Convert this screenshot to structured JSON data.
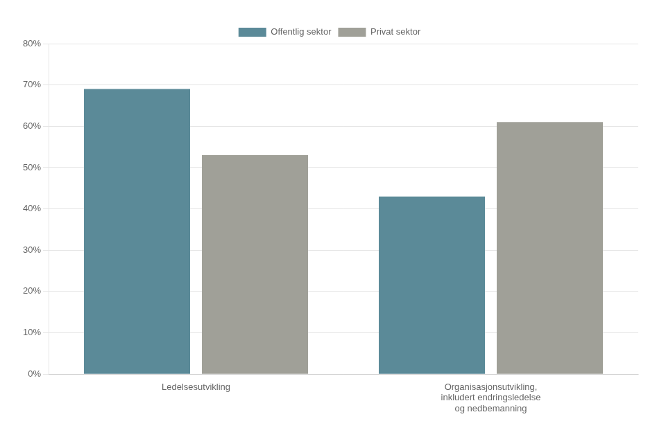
{
  "chart_data": {
    "type": "bar",
    "categories": [
      "Ledelsesutvikling",
      "Organisasjonsutvikling,\ninkludert endringsledelse\nog nedbemanning"
    ],
    "series": [
      {
        "name": "Offentlig sektor",
        "values": [
          0.69,
          0.43
        ],
        "color": "#5B8A98"
      },
      {
        "name": "Privat sektor",
        "values": [
          0.53,
          0.61
        ],
        "color": "#A0A098"
      }
    ],
    "ylim": [
      0,
      0.8
    ],
    "yticks": [
      {
        "value": 0.0,
        "label": "0%"
      },
      {
        "value": 0.1,
        "label": "10%"
      },
      {
        "value": 0.2,
        "label": "20%"
      },
      {
        "value": 0.3,
        "label": "30%"
      },
      {
        "value": 0.4,
        "label": "40%"
      },
      {
        "value": 0.5,
        "label": "50%"
      },
      {
        "value": 0.6,
        "label": "60%"
      },
      {
        "value": 0.7,
        "label": "70%"
      },
      {
        "value": 0.8,
        "label": "80%"
      }
    ],
    "grid": true,
    "legend": "top"
  }
}
